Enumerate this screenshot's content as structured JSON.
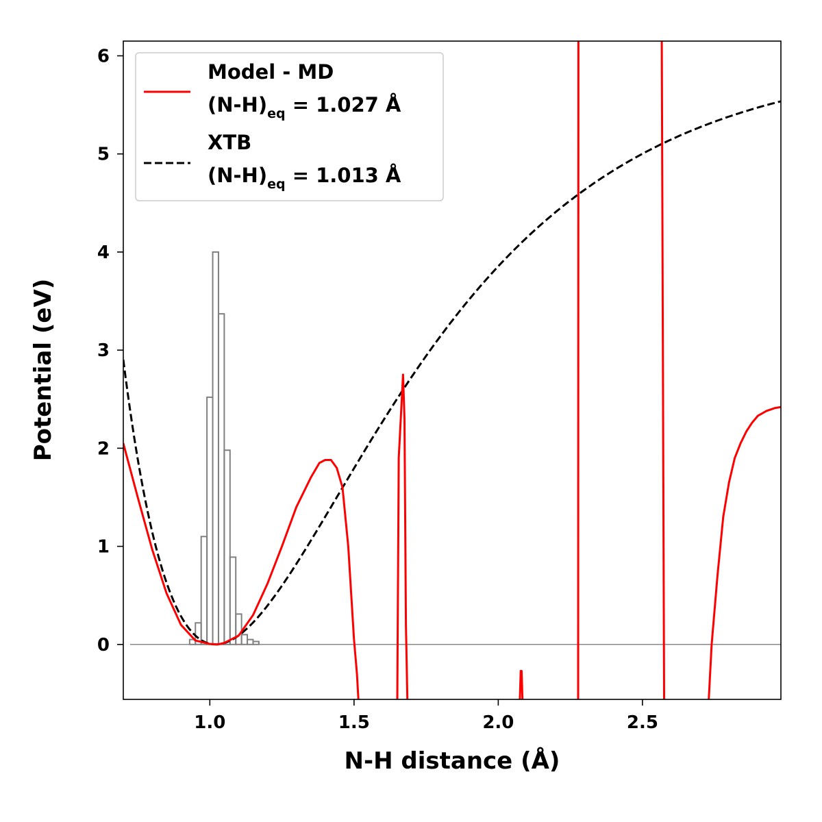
{
  "chart_data": {
    "type": "line",
    "xlabel": "N-H distance (Å)",
    "ylabel": "Potential (eV)",
    "xlim": [
      0.7,
      2.98
    ],
    "ylim": [
      -0.56,
      6.15
    ],
    "xticks": [
      1.0,
      1.5,
      2.0,
      2.5
    ],
    "xtick_labels": [
      "1.0",
      "1.5",
      "2.0",
      "2.5"
    ],
    "yticks": [
      0,
      1,
      2,
      3,
      4,
      5,
      6
    ],
    "ytick_labels": [
      "0",
      "1",
      "2",
      "3",
      "4",
      "5",
      "6"
    ],
    "legend_position": "upper-left",
    "zero_line": {
      "y": 0,
      "color": "#888888"
    },
    "series": [
      {
        "name": "Model - MD",
        "subtitle_prefix": "(N-H)",
        "subtitle_sub": "eq",
        "subtitle_suffix": " = 1.027 Å",
        "style": "solid",
        "color": "#ff0000",
        "x": [
          0.7,
          0.75,
          0.8,
          0.85,
          0.9,
          0.95,
          1.0,
          1.027,
          1.05,
          1.1,
          1.15,
          1.2,
          1.25,
          1.3,
          1.35,
          1.38,
          1.4,
          1.42,
          1.44,
          1.46,
          1.48,
          1.5,
          1.51,
          1.515,
          null,
          1.65,
          1.655,
          1.67,
          1.675,
          1.68,
          1.685,
          1.688,
          null,
          2.075,
          2.078,
          2.081,
          2.084,
          null,
          2.277,
          2.278,
          null,
          2.567,
          2.575,
          null,
          2.73,
          2.74,
          2.76,
          2.78,
          2.8,
          2.82,
          2.84,
          2.86,
          2.88,
          2.9,
          2.93,
          2.96,
          2.98
        ],
        "y": [
          2.05,
          1.5,
          0.97,
          0.52,
          0.2,
          0.04,
          0.005,
          0.0,
          0.015,
          0.09,
          0.3,
          0.62,
          1.0,
          1.4,
          1.7,
          1.85,
          1.88,
          1.88,
          1.8,
          1.6,
          1.0,
          0.05,
          -0.3,
          -0.56,
          null,
          -0.56,
          1.9,
          2.75,
          2.3,
          0.2,
          -0.56,
          -0.56,
          null,
          -0.56,
          -0.27,
          -0.27,
          -0.56,
          null,
          -0.56,
          6.15,
          null,
          6.15,
          -0.56,
          null,
          -0.56,
          0.0,
          0.7,
          1.3,
          1.65,
          1.9,
          2.05,
          2.17,
          2.26,
          2.33,
          2.38,
          2.41,
          2.42
        ]
      },
      {
        "name": "XTB",
        "subtitle_prefix": "(N-H)",
        "subtitle_sub": "eq",
        "subtitle_suffix": " = 1.013 Å",
        "style": "dashed",
        "color": "#000000",
        "model": {
          "D": 6.0,
          "a": 1.65,
          "re": 1.02
        }
      }
    ],
    "histogram": {
      "color": "#808080",
      "bin_edges": [
        0.93,
        0.95,
        0.97,
        0.99,
        1.01,
        1.03,
        1.05,
        1.07,
        1.09,
        1.11,
        1.13,
        1.15,
        1.17
      ],
      "heights": [
        0.05,
        0.22,
        1.1,
        2.52,
        4.0,
        3.37,
        1.98,
        0.89,
        0.31,
        0.1,
        0.05,
        0.03
      ]
    }
  }
}
